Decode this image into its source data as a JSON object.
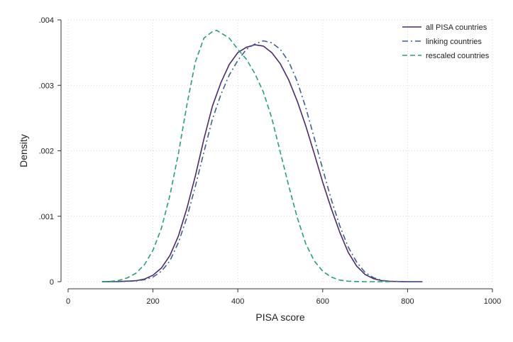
{
  "chart_data": {
    "type": "line",
    "title": "",
    "xlabel": "PISA score",
    "ylabel": "Density",
    "xlim": [
      0,
      1000
    ],
    "ylim": [
      0,
      0.004
    ],
    "x_ticks": [
      0,
      200,
      400,
      600,
      800,
      1000
    ],
    "x_tick_labels": [
      "0",
      "200",
      "400",
      "600",
      "800",
      "1000"
    ],
    "y_ticks": [
      0,
      0.001,
      0.002,
      0.003,
      0.004
    ],
    "y_tick_labels": [
      "0",
      ".001",
      ".002",
      ".003",
      ".004"
    ],
    "grid": true,
    "legend_position": "top-right",
    "series": [
      {
        "name": "all PISA countries",
        "color": "#4b2a6b",
        "dash": "solid",
        "x": [
          80,
          120,
          160,
          180,
          200,
          220,
          240,
          260,
          280,
          300,
          320,
          340,
          360,
          380,
          400,
          420,
          440,
          460,
          480,
          500,
          520,
          540,
          560,
          580,
          600,
          620,
          640,
          660,
          680,
          700,
          720,
          740,
          760,
          780,
          800,
          835
        ],
        "y": [
          0,
          2e-06,
          1.5e-05,
          4e-05,
          0.0001,
          0.00021,
          0.0004,
          0.0007,
          0.00112,
          0.00162,
          0.00218,
          0.00268,
          0.00304,
          0.00332,
          0.0035,
          0.00358,
          0.00362,
          0.0036,
          0.0035,
          0.00333,
          0.00308,
          0.00276,
          0.00238,
          0.00196,
          0.00152,
          0.00112,
          0.00076,
          0.00045,
          0.00024,
          0.00011,
          4.5e-05,
          1.5e-05,
          5e-06,
          2e-06,
          0,
          0
        ]
      },
      {
        "name": "linking countries",
        "color": "#3f5f8f",
        "dash": "dash-dot",
        "x": [
          80,
          120,
          160,
          180,
          200,
          220,
          240,
          260,
          280,
          300,
          320,
          340,
          360,
          380,
          400,
          420,
          440,
          460,
          480,
          500,
          520,
          540,
          560,
          580,
          600,
          620,
          640,
          660,
          680,
          700,
          720,
          740,
          760,
          780,
          800,
          835
        ],
        "y": [
          0,
          2e-06,
          1e-05,
          3e-05,
          7e-05,
          0.00016,
          0.00032,
          0.0006,
          0.00098,
          0.00146,
          0.00198,
          0.00248,
          0.00286,
          0.00316,
          0.00338,
          0.00355,
          0.00363,
          0.00368,
          0.00365,
          0.00355,
          0.00336,
          0.00306,
          0.00266,
          0.0022,
          0.00172,
          0.00126,
          0.00086,
          0.00053,
          0.0003,
          0.00014,
          6e-05,
          2e-05,
          7e-06,
          2e-06,
          0,
          0
        ]
      },
      {
        "name": "rescaled countries",
        "color": "#2a9d7f",
        "dash": "dashed",
        "x": [
          80,
          100,
          120,
          140,
          160,
          180,
          200,
          220,
          240,
          260,
          280,
          300,
          320,
          340,
          350,
          360,
          380,
          400,
          420,
          440,
          460,
          480,
          500,
          520,
          540,
          560,
          580,
          600,
          620,
          640,
          660,
          680,
          700,
          720,
          740,
          760
        ],
        "y": [
          0,
          5e-06,
          2e-05,
          6e-05,
          0.00013,
          0.00026,
          0.00048,
          0.00082,
          0.00132,
          0.00196,
          0.0027,
          0.00336,
          0.00372,
          0.00382,
          0.00384,
          0.0038,
          0.00372,
          0.00355,
          0.0034,
          0.00318,
          0.0029,
          0.0025,
          0.00198,
          0.00146,
          0.00098,
          0.00058,
          0.00032,
          0.00016,
          7e-05,
          2.5e-05,
          8e-06,
          2e-06,
          0,
          0,
          0,
          0
        ]
      }
    ]
  }
}
